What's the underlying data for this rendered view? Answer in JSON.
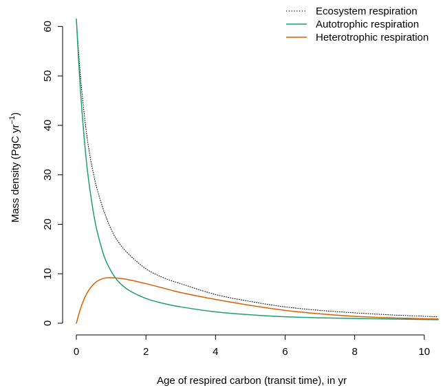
{
  "chart_data": {
    "type": "line",
    "xlabel": "Age of respired carbon (transit time), in yr",
    "ylabel": {
      "main": "Mass density (PgC yr",
      "superscript": "−1",
      "close": ")"
    },
    "xlim": [
      0,
      10.4
    ],
    "ylim": [
      0,
      62
    ],
    "x_ticks": [
      0,
      2,
      4,
      6,
      8,
      10
    ],
    "y_ticks": [
      0,
      10,
      20,
      30,
      40,
      50,
      60
    ],
    "grid": false,
    "legend_position": "top-right",
    "series": [
      {
        "name": "Ecosystem respiration",
        "color": "#000000",
        "style": "dotted",
        "x": [
          0,
          0.1,
          0.2,
          0.3,
          0.4,
          0.5,
          0.6,
          0.8,
          1.0,
          1.2,
          1.5,
          2.0,
          2.5,
          3.0,
          4.0,
          5.0,
          6.0,
          7.0,
          8.0,
          9.0,
          10.0,
          10.4
        ],
        "y": [
          61.5,
          51.5,
          44.0,
          38.0,
          33.5,
          30.0,
          27.0,
          22.5,
          19.0,
          16.5,
          14.0,
          11.0,
          9.2,
          8.0,
          5.8,
          4.4,
          3.3,
          2.6,
          2.1,
          1.7,
          1.4,
          1.3
        ]
      },
      {
        "name": "Autotrophic respiration",
        "color": "#1b9e77",
        "style": "solid",
        "x": [
          0,
          0.1,
          0.2,
          0.3,
          0.4,
          0.5,
          0.6,
          0.8,
          1.0,
          1.2,
          1.5,
          2.0,
          2.5,
          3.0,
          4.0,
          5.0,
          6.0,
          7.0,
          8.0,
          9.0,
          10.0,
          10.4
        ],
        "y": [
          61.5,
          49.0,
          39.5,
          32.0,
          26.5,
          22.0,
          18.5,
          13.5,
          10.5,
          8.5,
          6.7,
          5.0,
          4.0,
          3.3,
          2.3,
          1.7,
          1.3,
          1.1,
          0.95,
          0.85,
          0.75,
          0.72
        ]
      },
      {
        "name": "Heterotrophic respiration",
        "color": "#d95f02",
        "style": "solid",
        "x": [
          0,
          0.1,
          0.2,
          0.3,
          0.4,
          0.5,
          0.6,
          0.8,
          1.0,
          1.2,
          1.5,
          2.0,
          2.5,
          3.0,
          4.0,
          5.0,
          6.0,
          7.0,
          8.0,
          9.0,
          10.0,
          10.4
        ],
        "y": [
          0,
          2.5,
          4.5,
          6.0,
          7.1,
          7.9,
          8.5,
          9.1,
          9.2,
          9.1,
          8.8,
          8.0,
          7.1,
          6.2,
          4.8,
          3.6,
          2.6,
          1.9,
          1.4,
          1.1,
          0.9,
          0.85
        ]
      }
    ]
  }
}
